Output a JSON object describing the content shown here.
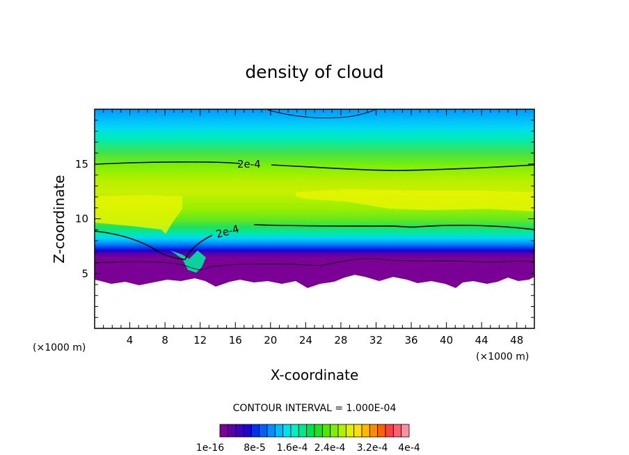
{
  "chart_data": {
    "type": "heatmap",
    "title": "density of cloud",
    "xlabel": "X-coordinate",
    "ylabel": "Z-coordinate",
    "x_unit": "(×1000 m)",
    "xlim": [
      0,
      50
    ],
    "ylim": [
      0,
      20
    ],
    "xticks": [
      "4",
      "8",
      "12",
      "16",
      "20",
      "24",
      "28",
      "32",
      "36",
      "40",
      "44",
      "48"
    ],
    "yticks": [
      "5",
      "10",
      "15"
    ],
    "contour_interval_text": "CONTOUR INTERVAL = 1.000E-04",
    "contour_lines": [
      {
        "label": "2e-4",
        "level": 0.0002,
        "points": [
          [
            0,
            15
          ],
          [
            8,
            15.1
          ],
          [
            16,
            15.2
          ],
          [
            24,
            14.8
          ],
          [
            30,
            14.5
          ],
          [
            36,
            14.4
          ],
          [
            42,
            14.6
          ],
          [
            50,
            14.9
          ]
        ]
      },
      {
        "label": "2e-4",
        "level": 0.0002,
        "points": [
          [
            0,
            8.8
          ],
          [
            4,
            8.5
          ],
          [
            7,
            7.9
          ],
          [
            9,
            7.2
          ],
          [
            10.3,
            6.4
          ],
          [
            11,
            7.3
          ],
          [
            12.5,
            8.2
          ],
          [
            16,
            9.1
          ],
          [
            20,
            9.5
          ],
          [
            28,
            9.4
          ],
          [
            35,
            9.2
          ],
          [
            42,
            9.5
          ],
          [
            50,
            8.9
          ]
        ]
      },
      {
        "label": "",
        "level": 0.0003,
        "points": [
          [
            20,
            19.8
          ],
          [
            26,
            19.1
          ],
          [
            32,
            19.6
          ],
          [
            33,
            20
          ]
        ]
      }
    ],
    "colorbar": {
      "tick_labels": [
        "1e-16",
        "8e-5",
        "1.6e-4",
        "2.4e-4",
        "3.2e-4",
        "4e-4"
      ],
      "colors": [
        "#7a0096",
        "#5a00a8",
        "#3c00c0",
        "#2000d8",
        "#0030f0",
        "#0060ff",
        "#0090ff",
        "#00bcff",
        "#00e0f0",
        "#00f0c0",
        "#00e890",
        "#00e050",
        "#20e020",
        "#50e800",
        "#80f000",
        "#b0f000",
        "#e0f000",
        "#ffe000",
        "#ffb800",
        "#ff8c00",
        "#ff6000",
        "#ff4040",
        "#ff6070",
        "#ff90a0"
      ]
    },
    "field_colors": {
      "bottom_band": "#7a0096",
      "mid_band": "#00e890",
      "core": "#e0f000",
      "top": "#00a8ff"
    }
  }
}
